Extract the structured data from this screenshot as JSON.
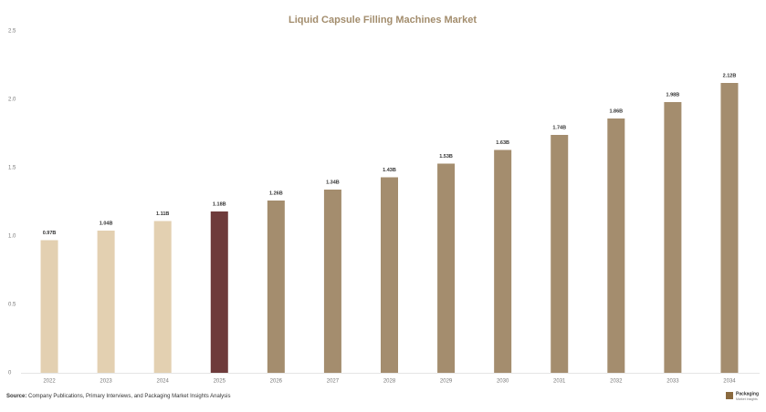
{
  "chart_data": {
    "type": "bar",
    "title": "Liquid Capsule Filling Machines Market",
    "categories": [
      "2022",
      "2023",
      "2024",
      "2025",
      "2026",
      "2027",
      "2028",
      "2029",
      "2030",
      "2031",
      "2032",
      "2033",
      "2034"
    ],
    "values": [
      0.97,
      1.04,
      1.11,
      1.18,
      1.26,
      1.34,
      1.43,
      1.53,
      1.63,
      1.74,
      1.86,
      1.98,
      2.12
    ],
    "value_labels": [
      "0.97B",
      "1.04B",
      "1.11B",
      "1.18B",
      "1.26B",
      "1.34B",
      "1.43B",
      "1.53B",
      "1.63B",
      "1.74B",
      "1.86B",
      "1.98B",
      "2.12B"
    ],
    "colors": [
      "#e3d0b1",
      "#e3d0b1",
      "#e3d0b1",
      "#6e3b3b",
      "#a48d6e",
      "#a48d6e",
      "#a48d6e",
      "#a48d6e",
      "#a48d6e",
      "#a48d6e",
      "#a48d6e",
      "#a48d6e",
      "#a48d6e"
    ],
    "ylim": [
      0,
      2.5
    ],
    "yticks": [
      0,
      0.5,
      {
        "value": 1,
        "label": "1.0"
      },
      1.5,
      {
        "value": 2,
        "label": "2.0"
      },
      2.5
    ],
    "grid": false,
    "source_label": "Source:",
    "source": "Company Publications, Primary Interviews, and Packaging Market Insights Analysis",
    "logo": "Packaging",
    "logo_sub": "Market Insights"
  }
}
